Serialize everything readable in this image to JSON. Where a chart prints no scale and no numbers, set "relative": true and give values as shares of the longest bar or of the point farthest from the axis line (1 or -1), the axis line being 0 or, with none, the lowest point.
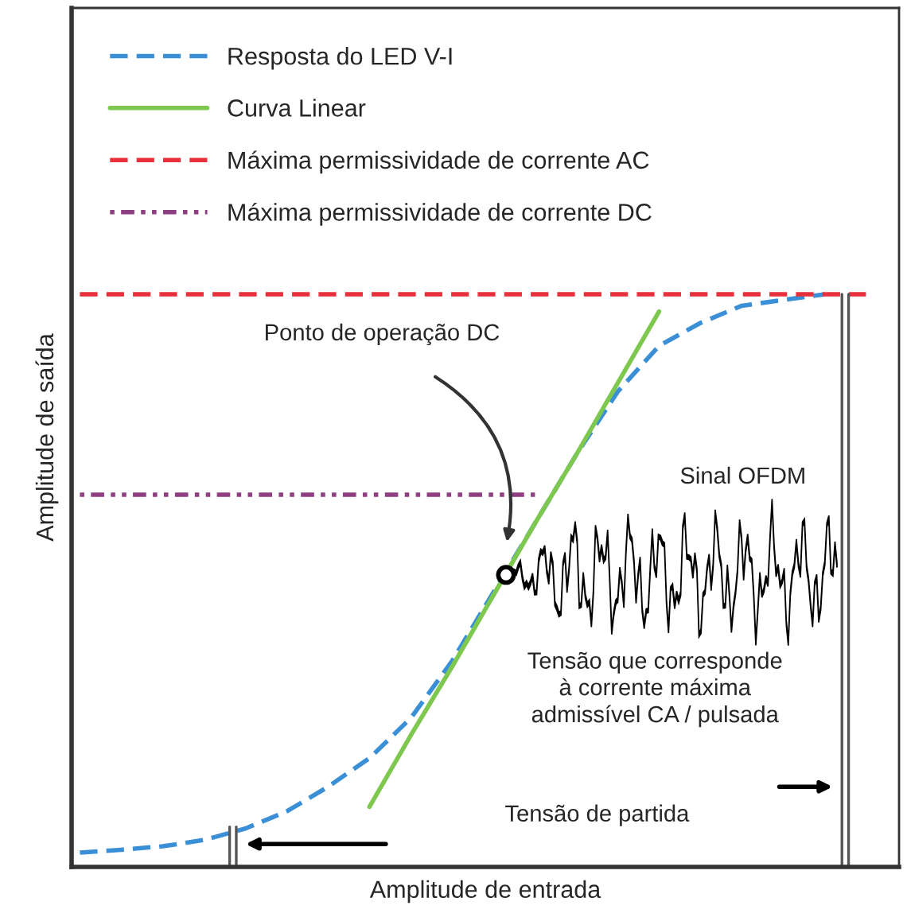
{
  "chart_data": {
    "type": "line",
    "relative": true,
    "tick_labels": false,
    "legend": "top left",
    "grid": false,
    "marker": "none",
    "xlabel": "Amplitude de entrada",
    "ylabel": "Amplitude de saída",
    "categories": [
      null,
      null,
      null,
      null,
      null,
      null,
      null,
      null,
      null,
      null,
      null,
      null,
      null,
      null,
      null,
      null,
      null,
      null,
      null,
      null
    ],
    "series": [
      {
        "name": "Resposta do LED V-I",
        "color": "#3b8fd6",
        "line_style": "dashed",
        "values": [
          0.025,
          0.03,
          0.036,
          0.047,
          0.067,
          0.097,
          0.14,
          0.19,
          0.26,
          0.36,
          0.48,
          0.6,
          0.72,
          0.83,
          0.91,
          0.95,
          0.98,
          0.99,
          1.0,
          null
        ]
      },
      {
        "name": "Curva Linear",
        "color": "#7ec850",
        "line_style": "solid",
        "values": [
          null,
          null,
          null,
          null,
          null,
          null,
          null,
          0.105,
          0.23,
          0.35,
          0.475,
          0.6,
          0.72,
          0.845,
          0.97,
          null,
          null,
          null,
          null,
          null
        ]
      },
      {
        "name": "Máxima permissividade de corrente AC",
        "color": "#e8303a",
        "line_style": "dashed",
        "values": [
          1,
          1,
          1,
          1,
          1,
          1,
          1,
          1,
          1,
          1,
          1,
          1,
          1,
          1,
          1,
          1,
          1,
          1,
          1,
          1
        ]
      },
      {
        "name": "Máxima permissividade de corrente DC",
        "color": "#8e3f82",
        "line_style": "dotted",
        "values": [
          0.65,
          0.65,
          0.65,
          0.65,
          0.65,
          0.65,
          0.65,
          0.65,
          0.65,
          0.65,
          0.65,
          0.65,
          null,
          null,
          null,
          null,
          null,
          null,
          null,
          null
        ]
      }
    ],
    "annotations": [
      "Ponto de operação DC",
      "Sinal OFDM",
      "Tensão que corresponde\nà corrente máxima\nadmissível CA / pulsada",
      "Tensão de partida"
    ]
  }
}
